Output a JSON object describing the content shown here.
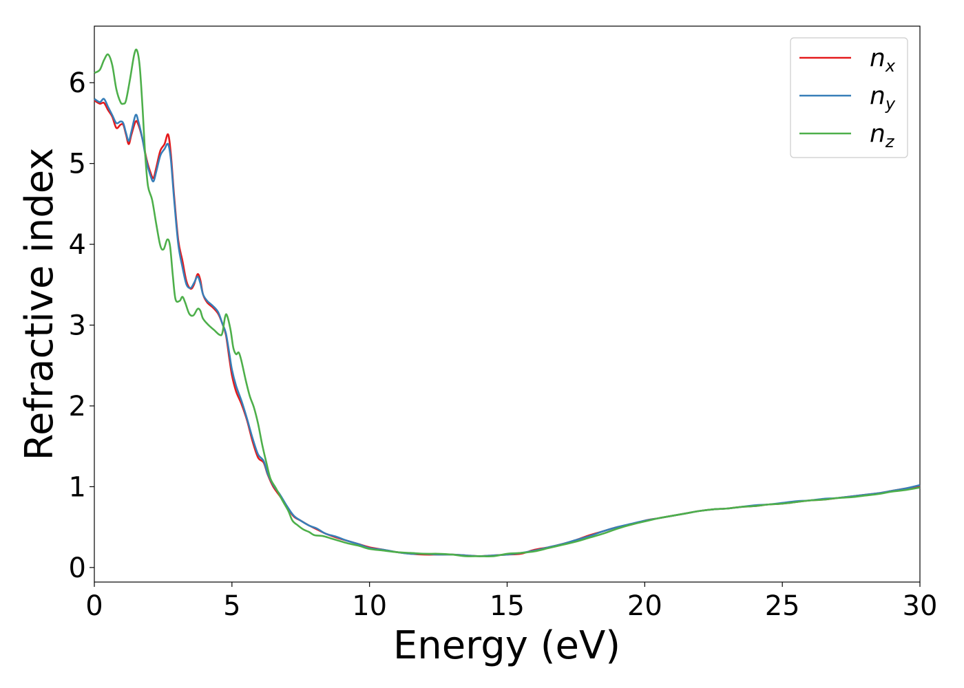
{
  "chart_data": {
    "type": "line",
    "title": "",
    "xlabel": "Energy (eV)",
    "ylabel": "Refractive index",
    "xlim": [
      0,
      30
    ],
    "ylim": [
      -0.18,
      6.7
    ],
    "xticks": [
      0,
      5,
      10,
      15,
      20,
      25,
      30
    ],
    "yticks": [
      0,
      1,
      2,
      3,
      4,
      5,
      6
    ],
    "grid": false,
    "legend_position": "top-right",
    "series": [
      {
        "name": "n_x",
        "label_base": "n",
        "label_sub": "x",
        "color": "#e41a1c",
        "points": [
          [
            0,
            5.78
          ],
          [
            0.2,
            5.74
          ],
          [
            0.35,
            5.75
          ],
          [
            0.5,
            5.66
          ],
          [
            0.65,
            5.58
          ],
          [
            0.8,
            5.44
          ],
          [
            0.95,
            5.48
          ],
          [
            1.05,
            5.48
          ],
          [
            1.15,
            5.36
          ],
          [
            1.25,
            5.24
          ],
          [
            1.35,
            5.36
          ],
          [
            1.5,
            5.52
          ],
          [
            1.6,
            5.48
          ],
          [
            1.75,
            5.3
          ],
          [
            1.9,
            5.05
          ],
          [
            2.05,
            4.88
          ],
          [
            2.15,
            4.82
          ],
          [
            2.25,
            4.95
          ],
          [
            2.4,
            5.16
          ],
          [
            2.55,
            5.24
          ],
          [
            2.68,
            5.36
          ],
          [
            2.78,
            5.12
          ],
          [
            2.9,
            4.6
          ],
          [
            3.05,
            4.05
          ],
          [
            3.2,
            3.8
          ],
          [
            3.35,
            3.54
          ],
          [
            3.5,
            3.45
          ],
          [
            3.62,
            3.5
          ],
          [
            3.75,
            3.63
          ],
          [
            3.85,
            3.56
          ],
          [
            3.95,
            3.38
          ],
          [
            4.1,
            3.28
          ],
          [
            4.3,
            3.22
          ],
          [
            4.5,
            3.14
          ],
          [
            4.65,
            3.02
          ],
          [
            4.78,
            2.88
          ],
          [
            4.9,
            2.6
          ],
          [
            5.0,
            2.38
          ],
          [
            5.15,
            2.18
          ],
          [
            5.35,
            2.02
          ],
          [
            5.55,
            1.82
          ],
          [
            5.75,
            1.56
          ],
          [
            5.95,
            1.36
          ],
          [
            6.15,
            1.3
          ],
          [
            6.3,
            1.15
          ],
          [
            6.5,
            1.0
          ],
          [
            6.75,
            0.88
          ],
          [
            7.0,
            0.75
          ],
          [
            7.25,
            0.63
          ],
          [
            7.5,
            0.58
          ],
          [
            7.8,
            0.52
          ],
          [
            8.1,
            0.47
          ],
          [
            8.4,
            0.42
          ],
          [
            8.8,
            0.37
          ],
          [
            9.2,
            0.33
          ],
          [
            9.6,
            0.29
          ],
          [
            10.0,
            0.25
          ],
          [
            10.5,
            0.22
          ],
          [
            11.0,
            0.19
          ],
          [
            11.5,
            0.17
          ],
          [
            12.0,
            0.16
          ],
          [
            12.5,
            0.16
          ],
          [
            13.0,
            0.16
          ],
          [
            13.5,
            0.15
          ],
          [
            14.0,
            0.14
          ],
          [
            14.5,
            0.15
          ],
          [
            15.0,
            0.16
          ],
          [
            15.5,
            0.17
          ],
          [
            16.0,
            0.22
          ],
          [
            16.5,
            0.25
          ],
          [
            17.0,
            0.29
          ],
          [
            17.5,
            0.34
          ],
          [
            18.0,
            0.4
          ],
          [
            18.5,
            0.45
          ],
          [
            19.0,
            0.5
          ],
          [
            19.5,
            0.53
          ],
          [
            20.0,
            0.58
          ],
          [
            20.5,
            0.61
          ],
          [
            21.0,
            0.64
          ],
          [
            21.5,
            0.67
          ],
          [
            22.0,
            0.7
          ],
          [
            22.5,
            0.72
          ],
          [
            23.0,
            0.73
          ],
          [
            23.5,
            0.75
          ],
          [
            24.0,
            0.76
          ],
          [
            24.5,
            0.78
          ],
          [
            25.0,
            0.79
          ],
          [
            25.5,
            0.81
          ],
          [
            26.0,
            0.83
          ],
          [
            26.5,
            0.84
          ],
          [
            27.0,
            0.86
          ],
          [
            27.5,
            0.88
          ],
          [
            28.0,
            0.9
          ],
          [
            28.5,
            0.92
          ],
          [
            29.0,
            0.95
          ],
          [
            29.5,
            0.98
          ],
          [
            30.0,
            1.01
          ]
        ]
      },
      {
        "name": "n_y",
        "label_base": "n",
        "label_sub": "y",
        "color": "#377eb8",
        "points": [
          [
            0,
            5.8
          ],
          [
            0.2,
            5.76
          ],
          [
            0.35,
            5.8
          ],
          [
            0.5,
            5.7
          ],
          [
            0.65,
            5.6
          ],
          [
            0.8,
            5.5
          ],
          [
            0.95,
            5.52
          ],
          [
            1.05,
            5.5
          ],
          [
            1.15,
            5.38
          ],
          [
            1.25,
            5.28
          ],
          [
            1.35,
            5.4
          ],
          [
            1.5,
            5.6
          ],
          [
            1.6,
            5.52
          ],
          [
            1.75,
            5.3
          ],
          [
            1.9,
            5.02
          ],
          [
            2.05,
            4.84
          ],
          [
            2.15,
            4.78
          ],
          [
            2.25,
            4.9
          ],
          [
            2.4,
            5.1
          ],
          [
            2.55,
            5.18
          ],
          [
            2.68,
            5.24
          ],
          [
            2.78,
            5.05
          ],
          [
            2.9,
            4.55
          ],
          [
            3.05,
            4.0
          ],
          [
            3.2,
            3.72
          ],
          [
            3.35,
            3.5
          ],
          [
            3.5,
            3.46
          ],
          [
            3.62,
            3.52
          ],
          [
            3.75,
            3.6
          ],
          [
            3.85,
            3.52
          ],
          [
            3.95,
            3.38
          ],
          [
            4.1,
            3.3
          ],
          [
            4.3,
            3.24
          ],
          [
            4.5,
            3.16
          ],
          [
            4.65,
            3.02
          ],
          [
            4.78,
            2.9
          ],
          [
            4.9,
            2.66
          ],
          [
            5.0,
            2.45
          ],
          [
            5.15,
            2.25
          ],
          [
            5.35,
            2.06
          ],
          [
            5.55,
            1.84
          ],
          [
            5.75,
            1.6
          ],
          [
            5.95,
            1.4
          ],
          [
            6.15,
            1.32
          ],
          [
            6.3,
            1.16
          ],
          [
            6.5,
            1.02
          ],
          [
            6.75,
            0.9
          ],
          [
            7.0,
            0.76
          ],
          [
            7.25,
            0.64
          ],
          [
            7.5,
            0.58
          ],
          [
            7.8,
            0.52
          ],
          [
            8.1,
            0.48
          ],
          [
            8.4,
            0.42
          ],
          [
            8.8,
            0.38
          ],
          [
            9.2,
            0.33
          ],
          [
            9.6,
            0.29
          ],
          [
            10.0,
            0.24
          ],
          [
            10.5,
            0.22
          ],
          [
            11.0,
            0.19
          ],
          [
            11.5,
            0.17
          ],
          [
            12.0,
            0.17
          ],
          [
            12.5,
            0.16
          ],
          [
            13.0,
            0.16
          ],
          [
            13.5,
            0.15
          ],
          [
            14.0,
            0.14
          ],
          [
            14.5,
            0.15
          ],
          [
            15.0,
            0.16
          ],
          [
            15.5,
            0.18
          ],
          [
            16.0,
            0.21
          ],
          [
            16.5,
            0.25
          ],
          [
            17.0,
            0.29
          ],
          [
            17.5,
            0.34
          ],
          [
            18.0,
            0.39
          ],
          [
            18.5,
            0.45
          ],
          [
            19.0,
            0.5
          ],
          [
            19.5,
            0.54
          ],
          [
            20.0,
            0.58
          ],
          [
            20.5,
            0.61
          ],
          [
            21.0,
            0.64
          ],
          [
            21.5,
            0.67
          ],
          [
            22.0,
            0.7
          ],
          [
            22.5,
            0.72
          ],
          [
            23.0,
            0.73
          ],
          [
            23.5,
            0.75
          ],
          [
            24.0,
            0.77
          ],
          [
            24.5,
            0.78
          ],
          [
            25.0,
            0.8
          ],
          [
            25.5,
            0.82
          ],
          [
            26.0,
            0.83
          ],
          [
            26.5,
            0.85
          ],
          [
            27.0,
            0.86
          ],
          [
            27.5,
            0.88
          ],
          [
            28.0,
            0.9
          ],
          [
            28.5,
            0.92
          ],
          [
            29.0,
            0.95
          ],
          [
            29.5,
            0.98
          ],
          [
            30.0,
            1.02
          ]
        ]
      },
      {
        "name": "n_z",
        "label_base": "n",
        "label_sub": "z",
        "color": "#4daf4a",
        "points": [
          [
            0,
            6.12
          ],
          [
            0.2,
            6.16
          ],
          [
            0.35,
            6.28
          ],
          [
            0.5,
            6.35
          ],
          [
            0.65,
            6.22
          ],
          [
            0.8,
            5.92
          ],
          [
            0.95,
            5.76
          ],
          [
            1.05,
            5.74
          ],
          [
            1.15,
            5.78
          ],
          [
            1.3,
            6.05
          ],
          [
            1.45,
            6.35
          ],
          [
            1.55,
            6.4
          ],
          [
            1.65,
            6.2
          ],
          [
            1.75,
            5.7
          ],
          [
            1.85,
            5.1
          ],
          [
            1.95,
            4.72
          ],
          [
            2.1,
            4.55
          ],
          [
            2.25,
            4.25
          ],
          [
            2.4,
            3.98
          ],
          [
            2.52,
            3.94
          ],
          [
            2.65,
            4.06
          ],
          [
            2.75,
            3.98
          ],
          [
            2.85,
            3.62
          ],
          [
            2.95,
            3.32
          ],
          [
            3.1,
            3.3
          ],
          [
            3.2,
            3.35
          ],
          [
            3.3,
            3.28
          ],
          [
            3.45,
            3.14
          ],
          [
            3.6,
            3.12
          ],
          [
            3.75,
            3.2
          ],
          [
            3.85,
            3.18
          ],
          [
            3.95,
            3.08
          ],
          [
            4.15,
            3.0
          ],
          [
            4.35,
            2.94
          ],
          [
            4.55,
            2.88
          ],
          [
            4.65,
            2.9
          ],
          [
            4.75,
            3.1
          ],
          [
            4.82,
            3.12
          ],
          [
            4.95,
            2.94
          ],
          [
            5.05,
            2.72
          ],
          [
            5.15,
            2.64
          ],
          [
            5.25,
            2.66
          ],
          [
            5.35,
            2.55
          ],
          [
            5.5,
            2.32
          ],
          [
            5.65,
            2.12
          ],
          [
            5.8,
            1.98
          ],
          [
            5.95,
            1.78
          ],
          [
            6.1,
            1.52
          ],
          [
            6.25,
            1.3
          ],
          [
            6.4,
            1.1
          ],
          [
            6.6,
            0.98
          ],
          [
            6.85,
            0.82
          ],
          [
            7.05,
            0.7
          ],
          [
            7.2,
            0.58
          ],
          [
            7.4,
            0.52
          ],
          [
            7.6,
            0.47
          ],
          [
            7.8,
            0.44
          ],
          [
            8.0,
            0.4
          ],
          [
            8.3,
            0.39
          ],
          [
            8.6,
            0.36
          ],
          [
            8.9,
            0.33
          ],
          [
            9.2,
            0.3
          ],
          [
            9.6,
            0.27
          ],
          [
            10.0,
            0.23
          ],
          [
            10.5,
            0.21
          ],
          [
            11.0,
            0.19
          ],
          [
            11.5,
            0.18
          ],
          [
            12.0,
            0.17
          ],
          [
            12.5,
            0.17
          ],
          [
            13.0,
            0.16
          ],
          [
            13.5,
            0.14
          ],
          [
            14.0,
            0.14
          ],
          [
            14.5,
            0.14
          ],
          [
            15.0,
            0.17
          ],
          [
            15.5,
            0.18
          ],
          [
            16.0,
            0.2
          ],
          [
            16.5,
            0.24
          ],
          [
            17.0,
            0.28
          ],
          [
            17.5,
            0.32
          ],
          [
            18.0,
            0.37
          ],
          [
            18.5,
            0.42
          ],
          [
            19.0,
            0.48
          ],
          [
            19.5,
            0.53
          ],
          [
            20.0,
            0.57
          ],
          [
            20.5,
            0.61
          ],
          [
            21.0,
            0.64
          ],
          [
            21.5,
            0.67
          ],
          [
            22.0,
            0.7
          ],
          [
            22.5,
            0.72
          ],
          [
            23.0,
            0.73
          ],
          [
            23.5,
            0.75
          ],
          [
            24.0,
            0.76
          ],
          [
            24.5,
            0.78
          ],
          [
            25.0,
            0.79
          ],
          [
            25.5,
            0.81
          ],
          [
            26.0,
            0.83
          ],
          [
            26.5,
            0.84
          ],
          [
            27.0,
            0.86
          ],
          [
            27.5,
            0.87
          ],
          [
            28.0,
            0.89
          ],
          [
            28.5,
            0.91
          ],
          [
            29.0,
            0.94
          ],
          [
            29.5,
            0.96
          ],
          [
            30.0,
            0.99
          ]
        ]
      }
    ]
  }
}
